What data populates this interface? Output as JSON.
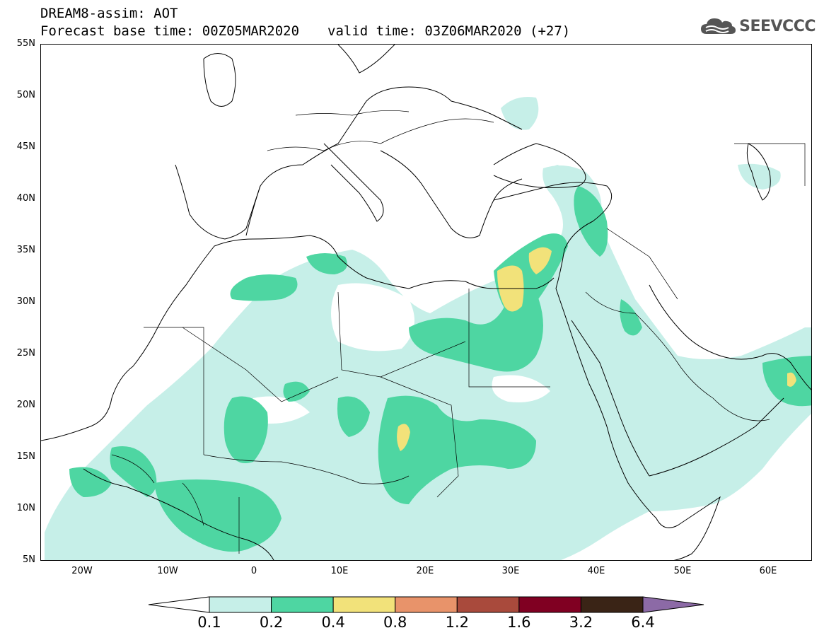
{
  "header": {
    "line1": "DREAM8-assim: AOT",
    "base": "Forecast base time: 00Z05MAR2020",
    "valid": "valid time: 03Z06MAR2020 (+27)"
  },
  "logo": {
    "text": "SEEVCCC",
    "icon": "cloud-logo-icon"
  },
  "axes": {
    "lat_labels": [
      "55N",
      "50N",
      "45N",
      "40N",
      "35N",
      "30N",
      "25N",
      "20N",
      "15N",
      "10N",
      "5N"
    ],
    "lon_labels": [
      "20W",
      "10W",
      "0",
      "10E",
      "20E",
      "30E",
      "40E",
      "50E",
      "60E"
    ],
    "lat_range": [
      5,
      55
    ],
    "lon_range": [
      -25,
      65
    ]
  },
  "legend": {
    "labels": [
      "0.1",
      "0.2",
      "0.4",
      "0.8",
      "1.2",
      "1.6",
      "3.2",
      "6.4"
    ],
    "colors": [
      "#ffffff",
      "#c6efe8",
      "#4ed6a2",
      "#f2e27a",
      "#e8936a",
      "#a94a3c",
      "#800022",
      "#3a2416",
      "#8c6aa6"
    ]
  }
}
